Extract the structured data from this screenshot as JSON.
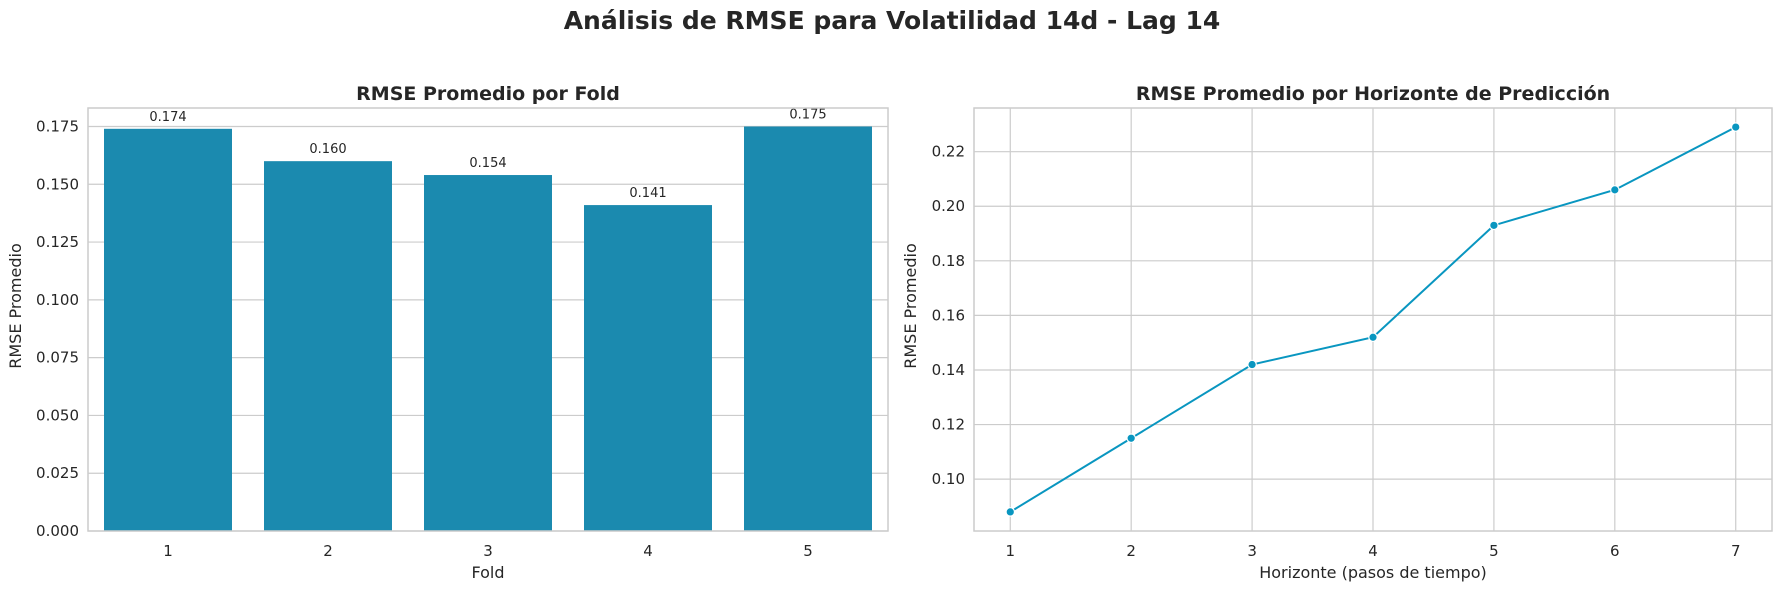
{
  "title": "Análisis de RMSE para Volatilidad 14d - Lag 14",
  "chart_data": [
    {
      "type": "bar",
      "title": "RMSE Promedio por Fold",
      "xlabel": "Fold",
      "ylabel": "RMSE Promedio",
      "categories": [
        "1",
        "2",
        "3",
        "4",
        "5"
      ],
      "values": [
        0.174,
        0.16,
        0.154,
        0.141,
        0.175
      ],
      "data_labels": [
        "0.174",
        "0.160",
        "0.154",
        "0.141",
        "0.175"
      ],
      "ylim": [
        0,
        0.183
      ],
      "yticks": [
        0.0,
        0.025,
        0.05,
        0.075,
        0.1,
        0.125,
        0.15,
        0.175
      ],
      "ytick_labels": [
        "0.000",
        "0.025",
        "0.050",
        "0.075",
        "0.100",
        "0.125",
        "0.150",
        "0.175"
      ],
      "grid": true,
      "color": "#1b8aaf"
    },
    {
      "type": "line",
      "title": "RMSE Promedio por Horizonte de Predicción",
      "xlabel": "Horizonte (pasos de tiempo)",
      "ylabel": "RMSE Promedio",
      "x": [
        1,
        2,
        3,
        4,
        5,
        6,
        7
      ],
      "xtick_labels": [
        "1",
        "2",
        "3",
        "4",
        "5",
        "6",
        "7"
      ],
      "values": [
        0.088,
        0.115,
        0.142,
        0.152,
        0.193,
        0.206,
        0.229
      ],
      "xlim": [
        0.7,
        7.3
      ],
      "ylim": [
        0.081,
        0.236
      ],
      "yticks": [
        0.1,
        0.12,
        0.14,
        0.16,
        0.18,
        0.2,
        0.22
      ],
      "ytick_labels": [
        "0.10",
        "0.12",
        "0.14",
        "0.16",
        "0.18",
        "0.20",
        "0.22"
      ],
      "grid": true,
      "color": "#0996c0"
    }
  ]
}
